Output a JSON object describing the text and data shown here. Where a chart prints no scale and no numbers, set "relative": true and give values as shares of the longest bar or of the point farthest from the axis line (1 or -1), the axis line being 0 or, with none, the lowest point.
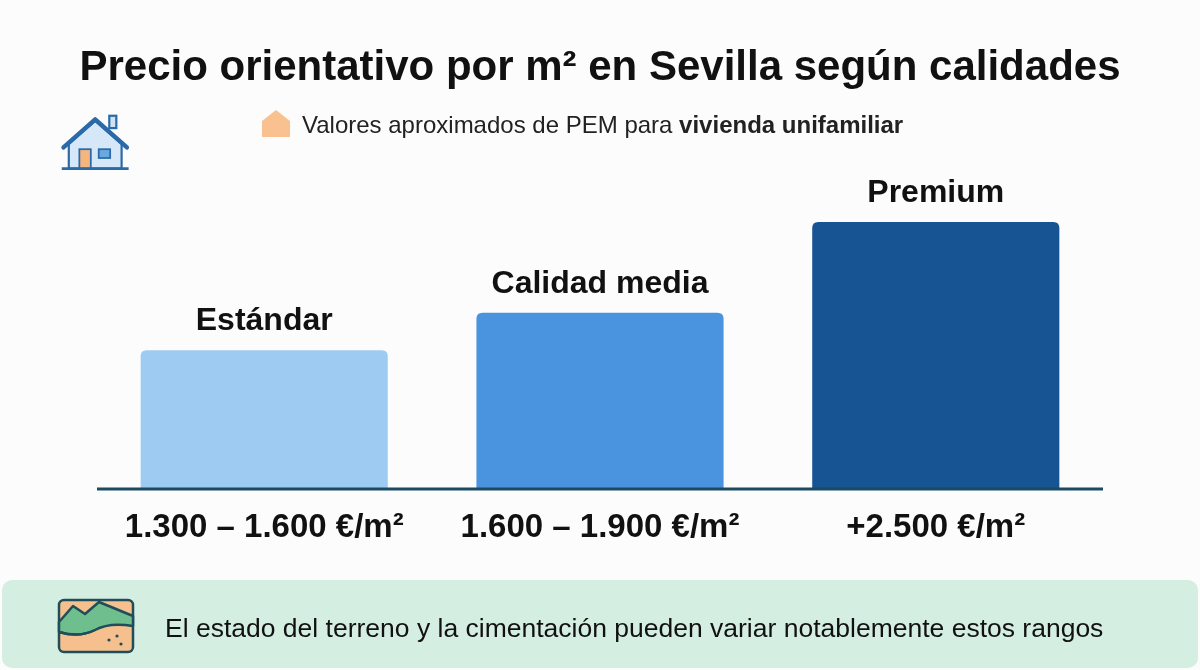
{
  "chart_data": {
    "type": "bar",
    "title": "Precio orientativo por m² en Sevilla según calidades",
    "subtitle": "Valores aproximados de PEM para vivienda unifamiliar",
    "categories": [
      "Estándar",
      "Calidad media",
      "Premium"
    ],
    "values": [
      0.52,
      0.66,
      1
    ],
    "colors": [
      "#9ecbf2",
      "#4a93de",
      "#175493"
    ],
    "relative": true,
    "annotations": [
      "1.300 – 1.600 €/m²",
      "1.600 – 1.900 €/m²",
      "+2.500 €/m²",
      "El estado del terreno y la cimentación pueden variar notablemente estos rangos"
    ]
  }
}
